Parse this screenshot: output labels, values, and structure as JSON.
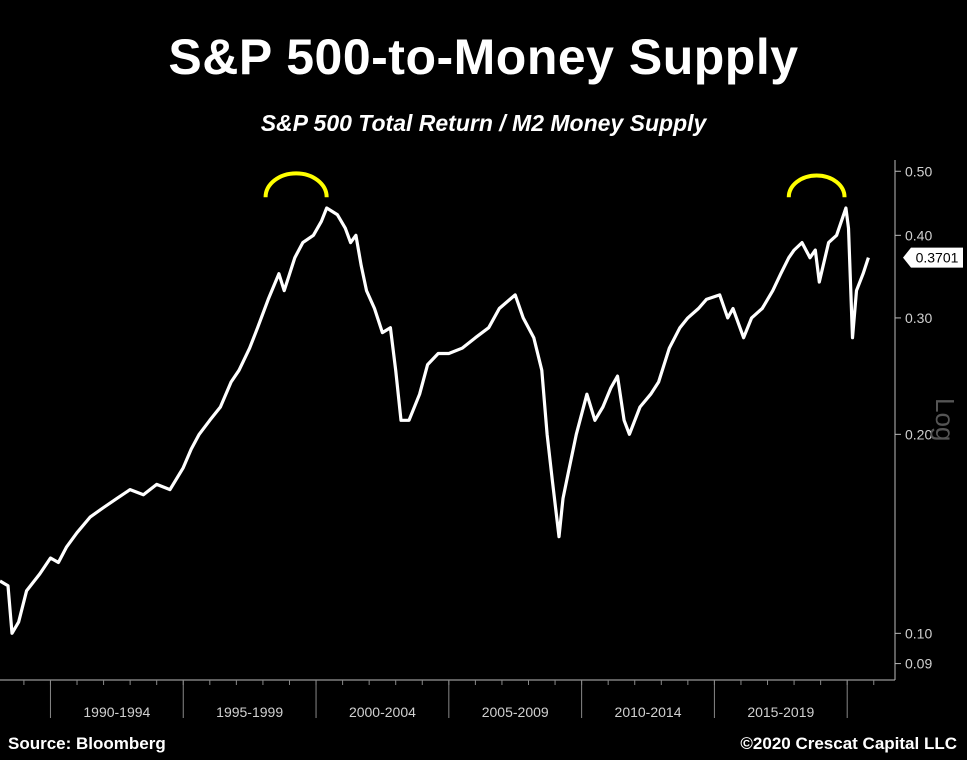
{
  "chart_data": {
    "type": "line",
    "title": "S&P 500-to-Money Supply",
    "subtitle": "S&P 500 Total Return / M2 Money Supply",
    "y_scale": "log",
    "y_scale_label": "Log",
    "ylim": [
      0.085,
      0.52
    ],
    "yticks": [
      "0.50",
      "0.40",
      "0.30",
      "0.20",
      "0.10",
      "0.09"
    ],
    "x_periods": [
      "1990-1994",
      "1995-1999",
      "2000-2004",
      "2005-2009",
      "2010-2014",
      "2015-2019"
    ],
    "xlim": [
      1988.1,
      2021.8
    ],
    "last_value_label": "0.3701",
    "highlight_color": "#ffff00",
    "line_color": "#ffffff",
    "highlights": [
      {
        "x_start": 1998.1,
        "x_end": 2000.4,
        "y": 0.46
      },
      {
        "x_start": 2017.8,
        "x_end": 2019.9,
        "y": 0.46
      }
    ],
    "series": [
      {
        "x": [
          1988.1,
          1988.4,
          1988.55,
          1988.8,
          1989.1,
          1989.6,
          1990.0,
          1990.3,
          1990.6,
          1991.0,
          1991.5,
          1992.0,
          1992.5,
          1993.0,
          1993.5,
          1994.0,
          1994.5,
          1995.0,
          1995.3,
          1995.6,
          1996.0,
          1996.4,
          1996.8,
          1997.1,
          1997.5,
          1997.8,
          1998.2,
          1998.6,
          1998.8,
          1999.2,
          1999.5,
          1999.9,
          2000.2,
          2000.4,
          2000.8,
          2001.1,
          2001.3,
          2001.5,
          2001.7,
          2001.9,
          2002.2,
          2002.5,
          2002.8,
          2003.0,
          2003.2,
          2003.5,
          2003.9,
          2004.2,
          2004.6,
          2005.0,
          2005.5,
          2006.0,
          2006.5,
          2006.9,
          2007.3,
          2007.5,
          2007.8,
          2008.2,
          2008.5,
          2008.7,
          2008.9,
          2009.15,
          2009.3,
          2009.5,
          2009.8,
          2010.2,
          2010.5,
          2010.8,
          2011.1,
          2011.35,
          2011.6,
          2011.8,
          2012.2,
          2012.6,
          2012.9,
          2013.3,
          2013.7,
          2014.0,
          2014.4,
          2014.7,
          2015.2,
          2015.5,
          2015.7,
          2016.1,
          2016.4,
          2016.8,
          2017.2,
          2017.5,
          2017.8,
          2018.0,
          2018.3,
          2018.6,
          2018.8,
          2018.95,
          2019.3,
          2019.6,
          2019.95,
          2020.05,
          2020.2,
          2020.35,
          2020.6,
          2020.8
        ],
        "values": [
          0.12,
          0.118,
          0.1,
          0.104,
          0.116,
          0.123,
          0.13,
          0.128,
          0.135,
          0.142,
          0.15,
          0.155,
          0.16,
          0.165,
          0.162,
          0.168,
          0.165,
          0.178,
          0.19,
          0.2,
          0.21,
          0.22,
          0.24,
          0.25,
          0.27,
          0.29,
          0.32,
          0.35,
          0.33,
          0.37,
          0.39,
          0.4,
          0.42,
          0.44,
          0.43,
          0.41,
          0.39,
          0.4,
          0.36,
          0.33,
          0.31,
          0.285,
          0.29,
          0.25,
          0.21,
          0.21,
          0.23,
          0.255,
          0.265,
          0.265,
          0.27,
          0.28,
          0.29,
          0.31,
          0.32,
          0.325,
          0.3,
          0.28,
          0.25,
          0.2,
          0.17,
          0.14,
          0.16,
          0.175,
          0.2,
          0.23,
          0.21,
          0.22,
          0.235,
          0.245,
          0.21,
          0.2,
          0.22,
          0.23,
          0.24,
          0.27,
          0.29,
          0.3,
          0.31,
          0.32,
          0.325,
          0.3,
          0.31,
          0.28,
          0.3,
          0.31,
          0.33,
          0.35,
          0.37,
          0.38,
          0.39,
          0.37,
          0.38,
          0.34,
          0.39,
          0.4,
          0.44,
          0.41,
          0.28,
          0.33,
          0.35,
          0.3701
        ]
      }
    ]
  },
  "footer": {
    "source": "Source: Bloomberg",
    "copyright": "©2020 Crescat Capital LLC"
  }
}
